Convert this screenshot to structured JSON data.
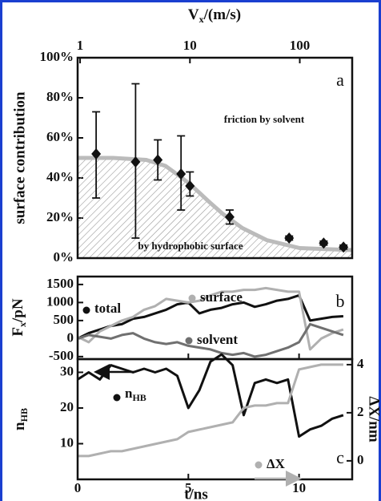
{
  "chart_data": [
    {
      "type": "scatter",
      "log_x": true,
      "x_label": [
        "V",
        "x",
        "/(m/s)"
      ],
      "y_label": "surface contribution",
      "panel_label": "a",
      "annotations": [
        "friction by solvent",
        "by hydrophobic surface"
      ],
      "xlim": [
        0.95,
        300
      ],
      "xticks": [
        1,
        10,
        100
      ],
      "ylim": [
        0,
        100
      ],
      "yticks": [
        {
          "value": 0,
          "label": "0%"
        },
        {
          "value": 20,
          "label": "20%"
        },
        {
          "value": 40,
          "label": "40%"
        },
        {
          "value": 60,
          "label": "60%"
        },
        {
          "value": 80,
          "label": "80%"
        },
        {
          "value": 100,
          "label": "100%"
        }
      ],
      "x": [
        1.4,
        3.2,
        5.1,
        8.3,
        10,
        23,
        80,
        165,
        250
      ],
      "values": [
        52,
        48,
        49,
        42,
        36,
        20.5,
        10,
        7.5,
        5.5
      ],
      "err_low": [
        30,
        10,
        39,
        24,
        31,
        17,
        9,
        6.5,
        4.5
      ],
      "err_high": [
        73,
        87,
        59,
        61,
        43,
        24,
        11,
        8.5,
        6.5
      ],
      "color": "#111111",
      "fit_x": [
        0.95,
        2,
        4,
        6,
        8,
        10,
        15,
        20,
        30,
        50,
        100,
        300
      ],
      "fit_y": [
        50,
        50,
        49,
        46,
        41,
        37,
        28,
        22,
        15,
        9,
        5,
        4
      ],
      "fit_color": "#bbbbbb"
    },
    {
      "type": "line",
      "panel_label": "b",
      "y_label": [
        "F",
        "x",
        "/pN"
      ],
      "xlim": [
        0,
        12.4
      ],
      "ylim": [
        -570,
        1720
      ],
      "yticks": [
        -500,
        0,
        500,
        1000,
        1500
      ],
      "x": [
        0,
        0.5,
        1,
        1.5,
        2,
        2.5,
        3,
        3.5,
        4,
        4.5,
        5,
        5.5,
        6,
        6.5,
        7,
        7.5,
        8,
        8.5,
        9,
        9.5,
        10,
        10.5,
        11,
        11.5,
        12
      ],
      "series": [
        {
          "name": "total",
          "color": "#111111",
          "values": [
            0,
            150,
            250,
            350,
            400,
            550,
            600,
            700,
            800,
            950,
            1000,
            700,
            800,
            850,
            950,
            1000,
            880,
            950,
            1050,
            1100,
            1200,
            500,
            550,
            600,
            620
          ]
        },
        {
          "name": "surface",
          "color": "#b0b0b0",
          "values": [
            50,
            -100,
            200,
            350,
            500,
            600,
            800,
            900,
            1100,
            1050,
            1000,
            1050,
            1200,
            1300,
            1300,
            1350,
            1350,
            1400,
            1350,
            1300,
            1300,
            -300,
            0,
            150,
            250
          ]
        },
        {
          "name": "solvent",
          "color": "#707070",
          "values": [
            0,
            100,
            50,
            0,
            100,
            150,
            0,
            -100,
            -150,
            -100,
            -200,
            -250,
            -300,
            -400,
            -450,
            -400,
            -500,
            -450,
            -350,
            -250,
            -100,
            400,
            300,
            200,
            100
          ]
        }
      ]
    },
    {
      "type": "line",
      "panel_label": "c",
      "x_label": "t/ns",
      "y_label": [
        "n",
        "HB"
      ],
      "y2_label": "ΔX/nm",
      "xlim": [
        0,
        12.4
      ],
      "xticks": [
        0,
        5,
        10
      ],
      "ylim": [
        0,
        33.7
      ],
      "yticks": [
        10,
        20,
        30
      ],
      "y2lim": [
        -0.77,
        4.23
      ],
      "y2ticks": [
        0,
        2,
        4
      ],
      "x": [
        0,
        0.5,
        1,
        1.5,
        2,
        2.5,
        3,
        3.5,
        4,
        4.5,
        5,
        5.5,
        6,
        6.5,
        7,
        7.5,
        8,
        8.5,
        9,
        9.5,
        10,
        10.5,
        11,
        11.5,
        12
      ],
      "series": [
        {
          "name": [
            "n",
            "HB"
          ],
          "color": "#111111",
          "values": [
            28,
            30,
            28,
            32,
            31,
            30,
            31,
            30,
            31,
            29,
            20,
            25,
            33,
            35,
            32,
            18,
            27,
            28,
            27,
            28,
            12,
            14,
            15,
            17,
            18
          ]
        },
        {
          "name": "ΔX",
          "color": "#b0b0b0",
          "axis": "y2",
          "values": [
            0.2,
            0.2,
            0.3,
            0.4,
            0.4,
            0.5,
            0.6,
            0.7,
            0.8,
            0.9,
            1.2,
            1.3,
            1.4,
            1.5,
            1.6,
            2.2,
            2.3,
            2.3,
            2.4,
            2.4,
            3.8,
            3.9,
            4.0,
            4.0,
            4.0
          ]
        }
      ]
    }
  ]
}
